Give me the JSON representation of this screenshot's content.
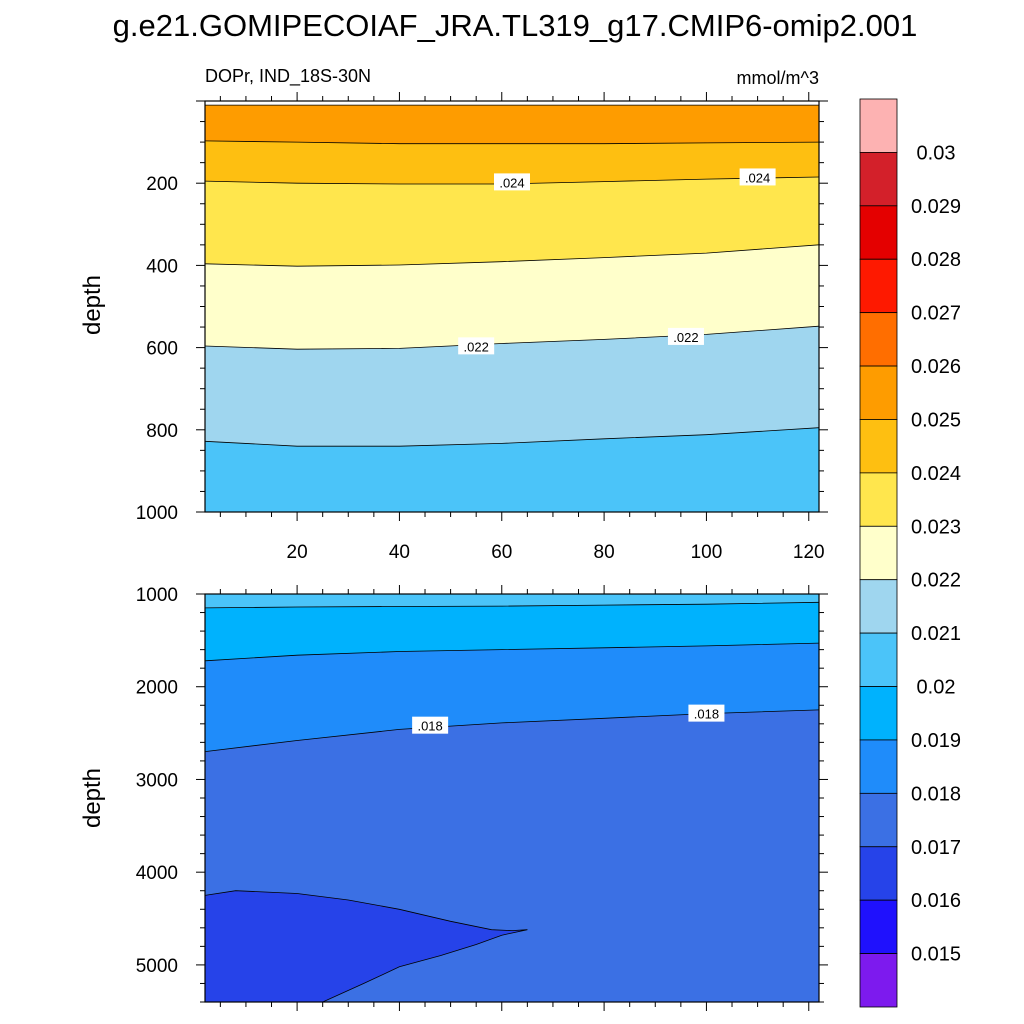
{
  "figure": {
    "title": "g.e21.GOMIPECOIAF_JRA.TL319_g17.CMIP6-omip2.001",
    "left_subtitle": "DOPr, IND_18S-30N",
    "right_subtitle": "mmol/m^3"
  },
  "chart_data": [
    {
      "type": "contour",
      "panel": "upper",
      "xlim": [
        2,
        122
      ],
      "ylim": [
        1000,
        0
      ],
      "y_reversed": true,
      "xlabel": "",
      "ylabel": "depth",
      "x_ticks": [
        20,
        40,
        60,
        80,
        100,
        120
      ],
      "x_tick_labels": [
        "20",
        "40",
        "60",
        "80",
        "100",
        "120"
      ],
      "y_ticks": [
        200,
        400,
        600,
        800,
        1000
      ],
      "y_tick_labels": [
        "200",
        "400",
        "600",
        "800",
        "1000"
      ],
      "y_top": 10,
      "top_fill": "#fe9c00",
      "contours": [
        {
          "level": 0.025,
          "fill_below": "#febf11",
          "x": [
            2,
            20,
            40,
            60,
            80,
            100,
            122
          ],
          "y": [
            97,
            100,
            104,
            104,
            104,
            102,
            100
          ]
        },
        {
          "level": 0.024,
          "fill_below": "#ffe64d",
          "x": [
            2,
            20,
            40,
            60,
            80,
            100,
            122
          ],
          "y": [
            195,
            200,
            202,
            202,
            196,
            190,
            185
          ]
        },
        {
          "level": 0.023,
          "fill_below": "#ffffcb",
          "x": [
            2,
            20,
            40,
            60,
            80,
            100,
            122
          ],
          "y": [
            396,
            402,
            399,
            391,
            381,
            370,
            350
          ]
        },
        {
          "level": 0.022,
          "fill_below": "#9fd6ef",
          "x": [
            2,
            20,
            40,
            60,
            80,
            100,
            122
          ],
          "y": [
            596,
            604,
            602,
            590,
            580,
            568,
            548
          ]
        },
        {
          "level": 0.021,
          "fill_below": "#4bc4f9",
          "x": [
            2,
            20,
            40,
            60,
            80,
            100,
            122
          ],
          "y": [
            828,
            840,
            840,
            833,
            822,
            812,
            795
          ]
        }
      ],
      "contour_labels": [
        {
          "text": ".024",
          "x": 62,
          "y": 198
        },
        {
          "text": ".024",
          "x": 110,
          "y": 186
        },
        {
          "text": ".022",
          "x": 55,
          "y": 597
        },
        {
          "text": ".022",
          "x": 96,
          "y": 574
        }
      ]
    },
    {
      "type": "contour",
      "panel": "lower",
      "xlim": [
        2,
        122
      ],
      "ylim": [
        5400,
        1000
      ],
      "y_reversed": true,
      "xlabel": "",
      "ylabel": "depth",
      "x_ticks": [
        20,
        40,
        60,
        80,
        100,
        120
      ],
      "x_tick_labels": [
        "",
        "",
        "",
        "",
        "",
        ""
      ],
      "y_ticks": [
        1000,
        2000,
        3000,
        4000,
        5000
      ],
      "y_tick_labels": [
        "1000",
        "2000",
        "3000",
        "4000",
        "5000"
      ],
      "top_fill": "#4bc4f9",
      "contours": [
        {
          "level": 0.02,
          "fill_below": "#00b2fd",
          "x": [
            2,
            20,
            40,
            60,
            80,
            100,
            122
          ],
          "y": [
            1150,
            1140,
            1135,
            1130,
            1120,
            1110,
            1090
          ]
        },
        {
          "level": 0.019,
          "fill_below": "#1f8cfa",
          "x": [
            2,
            20,
            40,
            60,
            80,
            100,
            122
          ],
          "y": [
            1720,
            1660,
            1620,
            1600,
            1580,
            1560,
            1530
          ]
        },
        {
          "level": 0.018,
          "fill_below": "#3b70e4",
          "x": [
            2,
            20,
            40,
            60,
            80,
            100,
            122
          ],
          "y": [
            2700,
            2580,
            2460,
            2390,
            2340,
            2290,
            2250
          ]
        },
        {
          "level": 0.017,
          "fill_below": "#2643e9",
          "closed": true,
          "x": [
            2,
            8,
            20,
            30,
            40,
            50,
            58,
            62,
            65,
            60,
            55,
            48,
            40,
            33,
            27,
            25,
            2
          ],
          "y": [
            4250,
            4200,
            4230,
            4300,
            4400,
            4530,
            4620,
            4630,
            4620,
            4680,
            4780,
            4900,
            5020,
            5200,
            5350,
            5400,
            5400
          ]
        }
      ],
      "contour_labels": [
        {
          "text": ".018",
          "x": 46,
          "y": 2420
        },
        {
          "text": ".018",
          "x": 100,
          "y": 2290
        }
      ]
    }
  ],
  "colorbar": {
    "colors": [
      "#fdb2b2",
      "#d3202a",
      "#e40000",
      "#fe1900",
      "#ff6e00",
      "#fe9c00",
      "#febf11",
      "#ffe64d",
      "#ffffcb",
      "#9fd6ef",
      "#4bc4f9",
      "#00b2fd",
      "#1f8cfa",
      "#3b70e4",
      "#2643e9",
      "#1f11fd",
      "#7d1aee"
    ],
    "labels": [
      "0.03",
      "0.029",
      "0.028",
      "0.027",
      "0.026",
      "0.025",
      "0.024",
      "0.023",
      "0.022",
      "0.021",
      "0.02",
      "0.019",
      "0.018",
      "0.017",
      "0.016",
      "0.015"
    ]
  }
}
